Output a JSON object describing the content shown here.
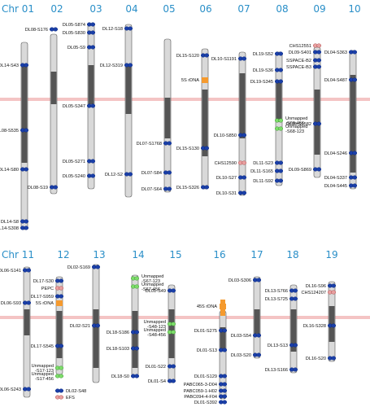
{
  "rows": [
    {
      "chromosomes": [
        {
          "id": "01",
          "label": "Chr  01"
        },
        {
          "id": "02",
          "label": "02"
        },
        {
          "id": "03",
          "label": "03"
        },
        {
          "id": "04",
          "label": "04"
        },
        {
          "id": "05",
          "label": "05"
        },
        {
          "id": "06",
          "label": "06"
        },
        {
          "id": "07",
          "label": "07"
        },
        {
          "id": "08",
          "label": "08"
        },
        {
          "id": "09",
          "label": "09"
        },
        {
          "id": "10",
          "label": "10"
        }
      ]
    },
    {
      "chromosomes": [
        {
          "id": "11",
          "label": "Chr  11"
        },
        {
          "id": "12",
          "label": "12"
        },
        {
          "id": "13",
          "label": "13"
        },
        {
          "id": "14",
          "label": "14"
        },
        {
          "id": "15",
          "label": "15"
        },
        {
          "id": "16",
          "label": "16"
        },
        {
          "id": "17",
          "label": "17"
        },
        {
          "id": "18",
          "label": "18"
        },
        {
          "id": "19",
          "label": "19"
        }
      ]
    }
  ],
  "markers": {
    "c01": [
      "DL14-S43",
      "DL08-S535",
      "DL14-S80",
      "DL14-S8",
      "DL14-S308"
    ],
    "c02": [
      "DL08-S176",
      "DL08-S19"
    ],
    "c03": [
      "DL05-S874",
      "DL05-S830",
      "DL05-S9",
      "DL05-S347",
      "DL05-S271",
      "DL05-S240"
    ],
    "c04": [
      "DL12-S18",
      "DL12-S319",
      "DL12-S2"
    ],
    "c05": [
      "DL07-S1768",
      "DL07-S84",
      "DL07-S64"
    ],
    "c06": [
      "DL15-S120",
      "5S rDNA",
      "DL15-S130",
      "DL15-S326"
    ],
    "c07": [
      "DL10-S1191",
      "DL10-S850",
      "CHS12590",
      "DL10-S27",
      "DL10-S31"
    ],
    "c08": [
      "DL19-S52",
      "DL19-S36",
      "DL19-S345",
      "Unmapped -S68-456",
      "Unmapped -S68-123",
      "DL11-S23",
      "DL11-S165",
      "DL11-S92"
    ],
    "c09": [
      "CHS12551",
      "DL09-S401",
      "SSPACE-B2",
      "SSPACE-B3",
      "DL09-S1582",
      "DL09-S869"
    ],
    "c10": [
      "DL04-S363",
      "DL04-S487",
      "DL04-S246",
      "DL04-S337",
      "DL04-S445"
    ],
    "c11": [
      "DL06-S141",
      "DL06-S93",
      "DL06-S243"
    ],
    "c12": [
      "DL17-S30",
      "PEPC",
      "DL17-S959",
      "5S rDNA",
      "DL17-S545",
      "Unmapped -S17-123",
      "Unmapped -S17-456",
      "DL02-S48",
      "EFS"
    ],
    "c13": [
      "DL02-S169",
      "DL02-S21"
    ],
    "c14": [
      "Unmapped -S67-123",
      "Unmapped -S67-456",
      "DL18-S186",
      "DL18-S103",
      "DL18-S0"
    ],
    "c15": [
      "DL01-S49",
      "Unmapped -S48-123",
      "Unmapped -S48-456",
      "DL01-S22",
      "DL01-S4"
    ],
    "c16": [
      "45S rDNA",
      "DL01-S275",
      "DL01-S13",
      "DL01-S129",
      "PABC065-3-D04",
      "PABC059-1-H02",
      "PABC094-4-F04",
      "DL01-S392"
    ],
    "c17": [
      "DL03-S306",
      "DL03-S54",
      "DL03-S20"
    ],
    "c18": [
      "DL13-S766",
      "DL13-S725",
      "DL13-S13",
      "DL13-S166"
    ],
    "c19": [
      "DL16-S96",
      "CHS124207",
      "DL16-S328",
      "DL16-S20"
    ]
  },
  "colors": {
    "label": "#2a8fc8",
    "marker_blue": "#1a3fa8",
    "marker_red": "#e8a0a0",
    "marker_green": "#7ddc6a",
    "rdna": "#f59a2e",
    "divider": "#f4c4c4"
  }
}
